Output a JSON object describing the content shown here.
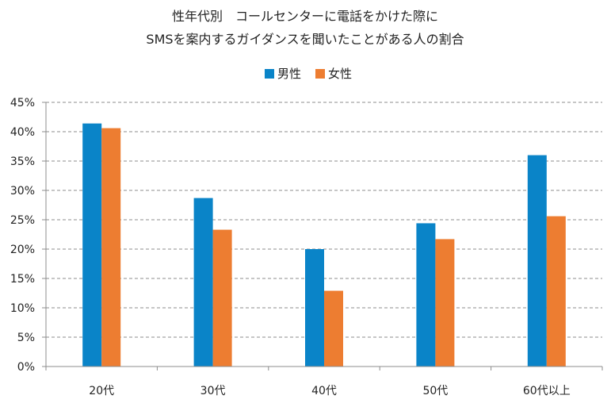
{
  "chart_data": {
    "type": "bar",
    "title": [
      "性年代別　コールセンターに電話をかけた際に",
      "SMSを案内するガイダンスを聞いたことがある人の割合"
    ],
    "categories": [
      "20代",
      "30代",
      "40代",
      "50代",
      "60代以上"
    ],
    "series": [
      {
        "name": "男性",
        "color": "#0a84c8",
        "values": [
          41.4,
          28.7,
          20.0,
          24.4,
          36.0
        ]
      },
      {
        "name": "女性",
        "color": "#ed7d31",
        "values": [
          40.6,
          23.3,
          12.9,
          21.7,
          25.6
        ]
      }
    ],
    "y_ticks": [
      "0%",
      "5%",
      "10%",
      "15%",
      "20%",
      "25%",
      "30%",
      "35%",
      "40%",
      "45%"
    ],
    "ylim": [
      0,
      45
    ],
    "ytick_step": 5,
    "y_unit": "%",
    "grid": true,
    "grid_style": "dashed",
    "legend_position": "top-center"
  }
}
